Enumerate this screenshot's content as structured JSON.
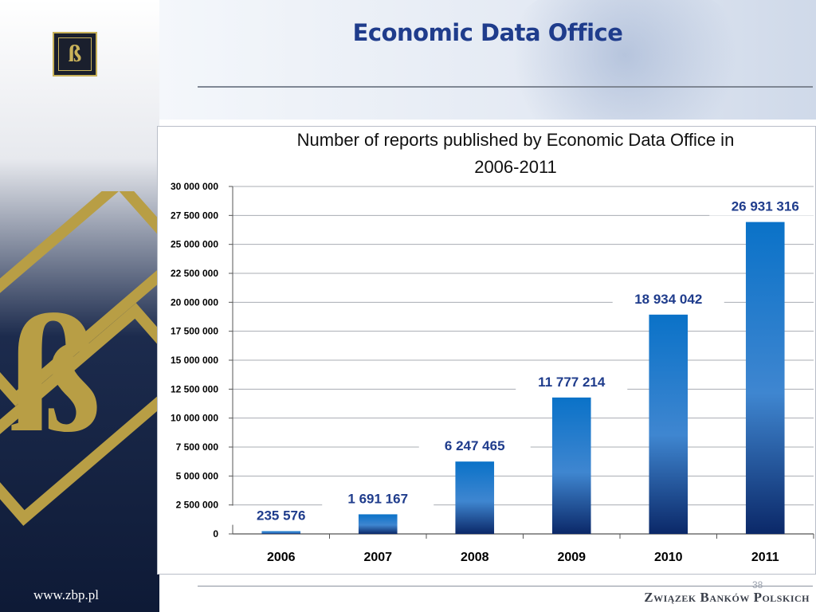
{
  "slide": {
    "title": "Economic Data Office",
    "website": "www.zbp.pl",
    "organization": "Związek Banków Polskich",
    "page_number": "38",
    "logo_letter": "ß"
  },
  "colors": {
    "title": "#1f3c8c",
    "bar_top": "#0a72c8",
    "bar_bottom": "#0b2868",
    "label": "#1f3c8c",
    "emblem_gold": "#c9b25a"
  },
  "chart_data": {
    "type": "bar",
    "title": "Number of reports published by Economic Data Office in 2006-2011",
    "xlabel": "",
    "ylabel": "",
    "categories": [
      "2006",
      "2007",
      "2008",
      "2009",
      "2010",
      "2011"
    ],
    "values": [
      235576,
      1691167,
      6247465,
      11777214,
      18934042,
      26931316
    ],
    "value_labels": [
      "235 576",
      "1 691 167",
      "6 247 465",
      "11 777 214",
      "18 934 042",
      "26 931 316"
    ],
    "ylim": [
      0,
      30000000
    ],
    "yticks": [
      0,
      2500000,
      5000000,
      7500000,
      10000000,
      12500000,
      15000000,
      17500000,
      20000000,
      22500000,
      25000000,
      27500000,
      30000000
    ],
    "ytick_labels": [
      "0",
      "2 500 000",
      "5 000 000",
      "7 500 000",
      "10 000 000",
      "12 500 000",
      "15 000 000",
      "17 500 000",
      "20 000 000",
      "22 500 000",
      "25 000 000",
      "27 500 000",
      "30 000 000"
    ],
    "grid": true,
    "legend": "none"
  }
}
